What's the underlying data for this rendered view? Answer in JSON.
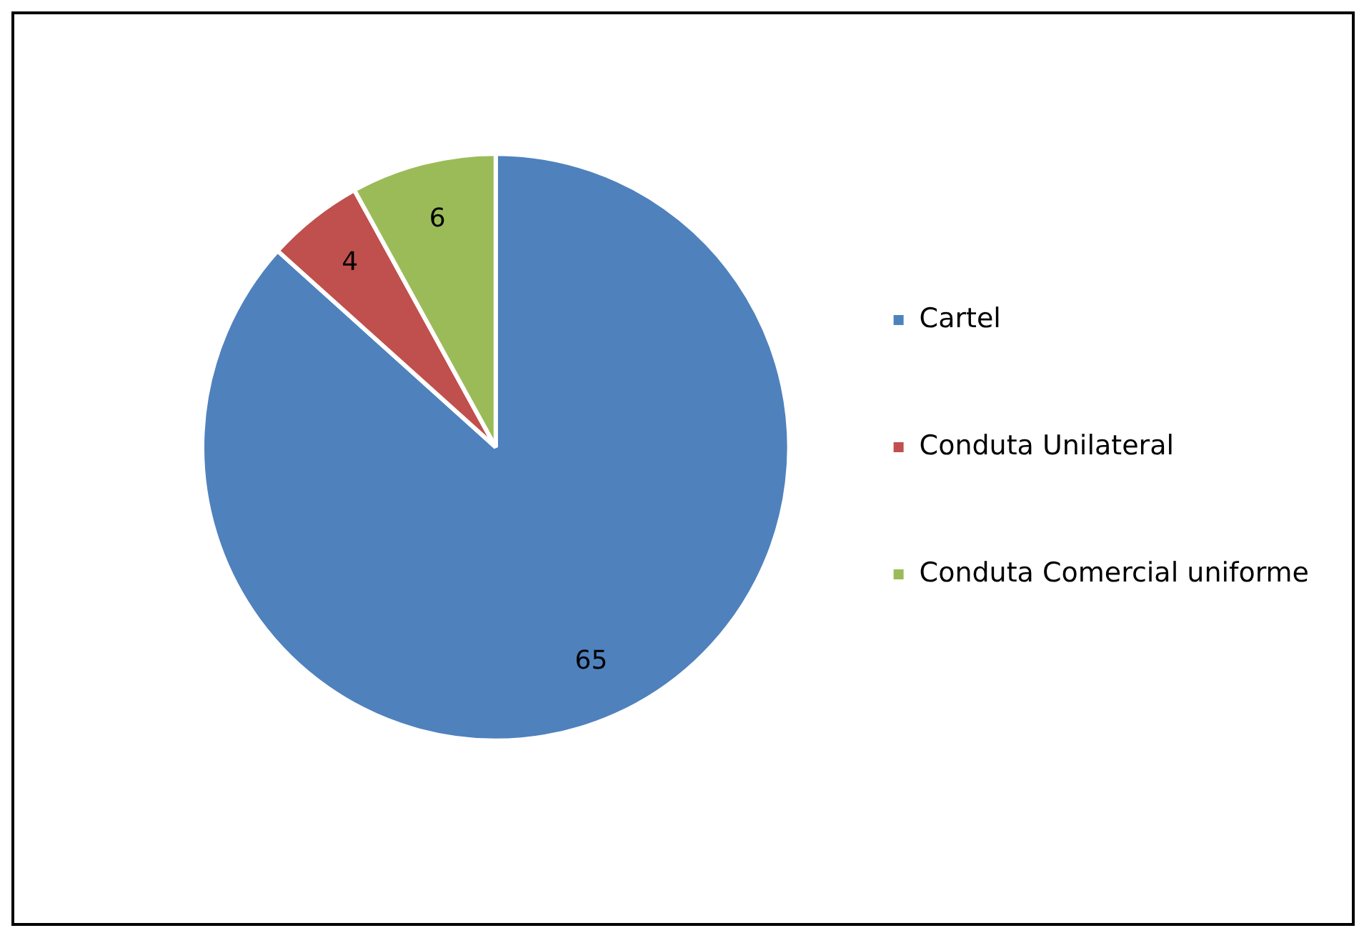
{
  "chart_data": {
    "type": "pie",
    "categories": [
      "Cartel",
      "Conduta Unilateral",
      "Conduta Comercial uniforme"
    ],
    "values": [
      65,
      4,
      6
    ],
    "colors": [
      "#4f81bd",
      "#c0504d",
      "#9bbb59"
    ],
    "data_labels": true,
    "legend": "right"
  }
}
